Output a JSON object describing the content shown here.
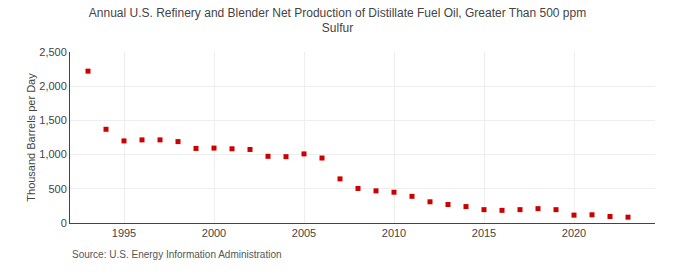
{
  "chart_data": {
    "type": "scatter",
    "title": "Annual U.S. Refinery and Blender Net Production of Distillate Fuel Oil, Greater Than 500 ppm\nSulfur",
    "y_label": "Thousand Barrels per Day",
    "annotations": [
      "Source: U.S. Energy Information Administration"
    ],
    "x": [
      1993,
      1994,
      1995,
      1996,
      1997,
      1998,
      1999,
      2000,
      2001,
      2002,
      2003,
      2004,
      2005,
      2006,
      2007,
      2008,
      2009,
      2010,
      2011,
      2012,
      2013,
      2014,
      2015,
      2016,
      2017,
      2018,
      2019,
      2020,
      2021,
      2022,
      2023
    ],
    "values": [
      2220,
      1370,
      1200,
      1215,
      1215,
      1190,
      1090,
      1095,
      1085,
      1075,
      975,
      970,
      1010,
      950,
      645,
      505,
      470,
      450,
      390,
      310,
      270,
      240,
      195,
      185,
      195,
      210,
      195,
      115,
      120,
      95,
      85
    ],
    "color": "#cc0000",
    "marker": "square",
    "xlim": [
      1992.0,
      2024.5
    ],
    "xticks": [
      1995,
      2000,
      2005,
      2010,
      2015,
      2020
    ],
    "ylim": [
      0,
      2500
    ],
    "yticks": [
      0,
      500,
      {
        "value": 1000,
        "label": "1,000"
      },
      {
        "value": 1500,
        "label": "1,500"
      },
      {
        "value": 2000,
        "label": "2,000"
      },
      {
        "value": 2500,
        "label": "2,500"
      }
    ],
    "grid": true
  }
}
